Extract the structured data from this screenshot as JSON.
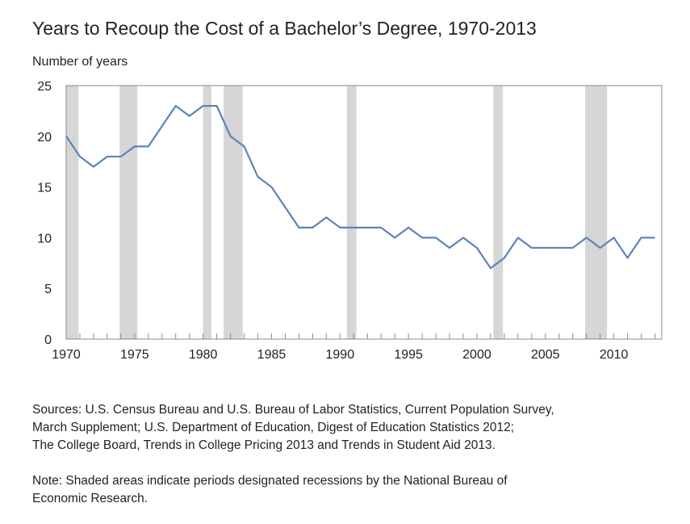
{
  "chart_data": {
    "type": "line",
    "title": "Years to Recoup the Cost of a Bachelor’s Degree, 1970-2013",
    "ylabel": "Number of years",
    "xlabel": "",
    "xlim": [
      1970,
      2013.5
    ],
    "ylim": [
      0,
      25
    ],
    "y_ticks": [
      0,
      5,
      10,
      15,
      20,
      25
    ],
    "x_tick_labels": [
      1970,
      1975,
      1980,
      1985,
      1990,
      1995,
      2000,
      2005,
      2010
    ],
    "legend": "none",
    "grid": false,
    "line_color": "#5b84b8",
    "recession_color": "#d6d6d6",
    "recessions": [
      {
        "start": 1970.0,
        "end": 1970.9
      },
      {
        "start": 1973.9,
        "end": 1975.2
      },
      {
        "start": 1980.0,
        "end": 1980.6
      },
      {
        "start": 1981.5,
        "end": 1982.9
      },
      {
        "start": 1990.5,
        "end": 1991.2
      },
      {
        "start": 2001.2,
        "end": 2001.9
      },
      {
        "start": 2007.9,
        "end": 2009.5
      }
    ],
    "x": [
      1970,
      1971,
      1972,
      1973,
      1974,
      1975,
      1976,
      1977,
      1978,
      1979,
      1980,
      1981,
      1982,
      1983,
      1984,
      1985,
      1986,
      1987,
      1988,
      1989,
      1990,
      1991,
      1992,
      1993,
      1994,
      1995,
      1996,
      1997,
      1998,
      1999,
      2000,
      2001,
      2002,
      2003,
      2004,
      2005,
      2006,
      2007,
      2008,
      2009,
      2010,
      2011,
      2012,
      2013
    ],
    "series": [
      {
        "values": [
          20,
          18,
          17,
          18,
          18,
          19,
          19,
          21,
          23,
          22,
          23,
          23,
          20,
          19,
          16,
          15,
          13,
          11,
          11,
          12,
          11,
          11,
          11,
          11,
          10,
          11,
          10,
          10,
          9,
          10,
          9,
          7,
          8,
          10,
          9,
          9,
          9,
          9,
          10,
          9,
          10,
          8,
          10,
          10
        ]
      }
    ]
  },
  "footer": {
    "sources": [
      "Sources: U.S. Census Bureau and U.S. Bureau of Labor Statistics, Current Population Survey,",
      "March Supplement; U.S. Department of Education, Digest of Education Statistics 2012;",
      "The College Board, Trends in College Pricing 2013 and Trends in Student Aid 2013."
    ],
    "note": [
      "Note: Shaded areas indicate periods designated recessions by the National Bureau of",
      "Economic Research."
    ]
  }
}
